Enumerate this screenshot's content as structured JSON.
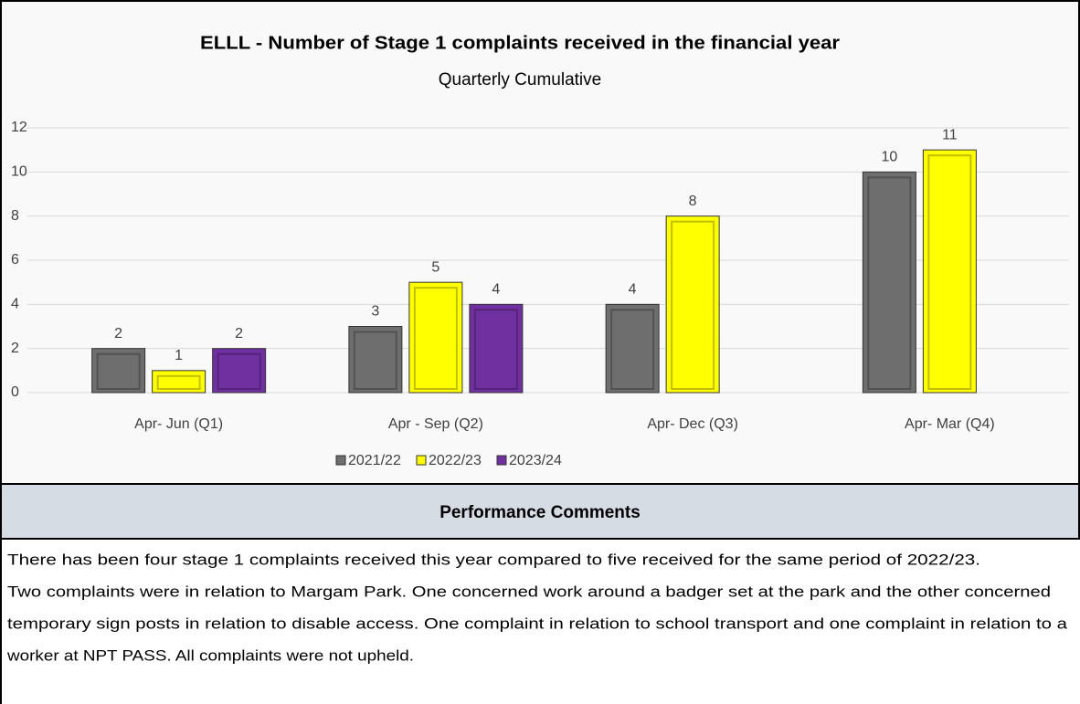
{
  "chart_data": {
    "type": "bar",
    "title": "ELLL - Number of Stage 1 complaints received in the financial year",
    "subtitle": "Quarterly Cumulative",
    "categories": [
      "Apr- Jun  (Q1)",
      "Apr - Sep  (Q2)",
      "Apr- Dec  (Q3)",
      "Apr- Mar  (Q4)"
    ],
    "series": [
      {
        "name": "2021/22",
        "color": "#6e6e6e",
        "values": [
          2,
          3,
          4,
          10
        ]
      },
      {
        "name": "2022/23",
        "color": "#ffff00",
        "values": [
          1,
          5,
          8,
          11
        ]
      },
      {
        "name": "2023/24",
        "color": "#7030a0",
        "values": [
          2,
          4,
          null,
          null
        ]
      }
    ],
    "ylim": [
      0,
      12
    ],
    "yticks": [
      0,
      2,
      4,
      6,
      8,
      10,
      12
    ],
    "grid": true,
    "legend": "bottom"
  },
  "comments": {
    "heading": "Performance Comments",
    "lines": [
      "There has been four stage 1 complaints received this year compared to five received for the same period of 2022/23.",
      "Two complaints were in relation to Margam Park. One concerned work around a badger set at the park and the other concerned",
      "temporary sign posts in relation to disable access. One complaint in relation to school transport and one complaint in relation to a",
      "worker at NPT PASS. All complaints were not upheld."
    ]
  }
}
